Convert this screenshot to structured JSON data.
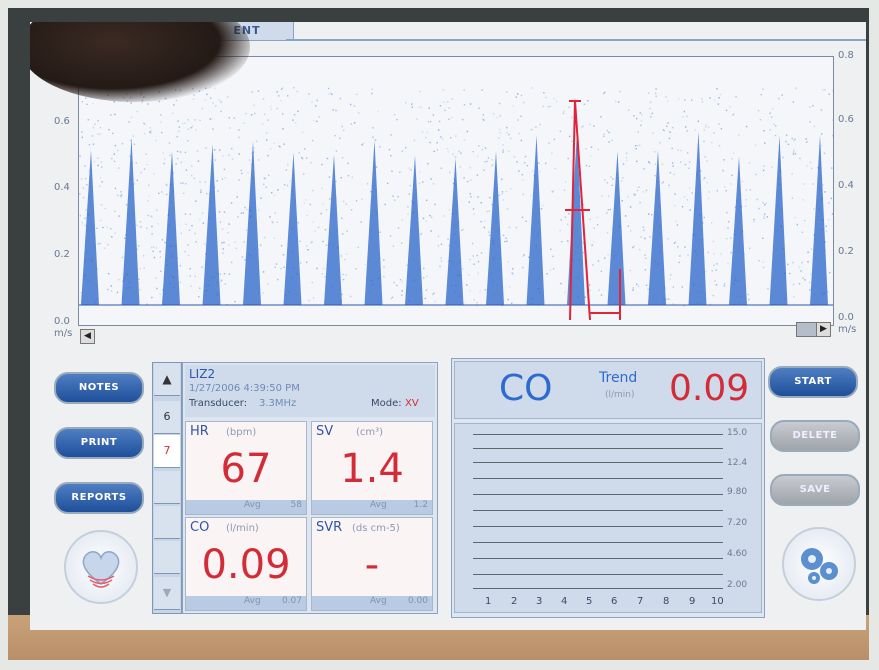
{
  "header": {
    "tab_label": "ENT"
  },
  "spectrum": {
    "left_axis": [
      "0.6",
      "0.4",
      "0.2",
      "0.0"
    ],
    "left_unit": "m/s",
    "right_axis": [
      "0.8",
      "0.6",
      "0.4",
      "0.2",
      "0.0"
    ],
    "right_unit": "m/s",
    "colors": {
      "trace": "#2a64c8",
      "marker": "#e0253a"
    }
  },
  "left_buttons": {
    "notes": "NOTES",
    "print": "PRINT",
    "reports": "REPORTS"
  },
  "side_tabs": [
    "6",
    "7"
  ],
  "patient": {
    "name": "LIZ2",
    "datetime": "1/27/2006   4:39:50 PM",
    "transducer_label": "Transducer:",
    "transducer_value": "3.3MHz",
    "mode_label": "Mode:",
    "mode_value": "XV"
  },
  "cells": {
    "hr": {
      "label": "HR",
      "unit": "(bpm)",
      "value": "67",
      "avg_label": "Avg",
      "avg_value": "58"
    },
    "sv": {
      "label": "SV",
      "unit": "(cm³)",
      "value": "1.4",
      "avg_label": "Avg",
      "avg_value": "1.2"
    },
    "co": {
      "label": "CO",
      "unit": "(l/min)",
      "value": "0.09",
      "avg_label": "Avg",
      "avg_value": "0.07"
    },
    "svr": {
      "label": "SVR",
      "unit": "(ds cm-5)",
      "value": "-",
      "avg_label": "Avg",
      "avg_value": "0.00"
    }
  },
  "trend": {
    "metric": "CO",
    "title": "Trend",
    "unit": "(l/min)",
    "value": "0.09",
    "y_labels": [
      "15.0",
      "12.4",
      "9.80",
      "7.20",
      "4.60",
      "2.00"
    ],
    "x_labels": [
      "1",
      "2",
      "3",
      "4",
      "5",
      "6",
      "7",
      "8",
      "9",
      "10"
    ]
  },
  "right_buttons": {
    "start": "START",
    "delete": "DELETE",
    "save": "SAVE"
  }
}
